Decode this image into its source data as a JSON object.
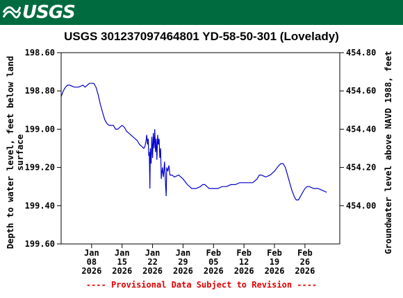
{
  "header": {
    "logo_text": "USGS",
    "logo_icon": "usgs-wave-icon",
    "background_color": "#006b3f"
  },
  "chart_data": {
    "type": "line",
    "title": "USGS 301237097464801 YD-58-50-301 (Lovelady)",
    "ylabel_left": [
      "Depth to water level, feet below land",
      "surface"
    ],
    "ylabel_right": "Groundwater level above NAVD 1988, feet",
    "left_axis": {
      "min": 198.6,
      "max": 199.6,
      "inverted": true,
      "ticks": [
        "198.60",
        "198.80",
        "199.00",
        "199.20",
        "199.40",
        "199.60"
      ]
    },
    "right_axis": {
      "min": 453.8,
      "max": 454.8,
      "ticks": [
        "454.00",
        "454.20",
        "454.40",
        "454.60",
        "454.80"
      ]
    },
    "x_range": [
      "2026-01-01",
      "2026-03-06"
    ],
    "x_ticks": [
      {
        "date": "2026-01-08",
        "label": [
          "Jan",
          "08",
          "2026"
        ]
      },
      {
        "date": "2026-01-15",
        "label": [
          "Jan",
          "15",
          "2026"
        ]
      },
      {
        "date": "2026-01-22",
        "label": [
          "Jan",
          "22",
          "2026"
        ]
      },
      {
        "date": "2026-01-29",
        "label": [
          "Jan",
          "29",
          "2026"
        ]
      },
      {
        "date": "2026-02-05",
        "label": [
          "Feb",
          "05",
          "2026"
        ]
      },
      {
        "date": "2026-02-12",
        "label": [
          "Feb",
          "12",
          "2026"
        ]
      },
      {
        "date": "2026-02-19",
        "label": [
          "Feb",
          "19",
          "2026"
        ]
      },
      {
        "date": "2026-02-26",
        "label": [
          "Feb",
          "26",
          "2026"
        ]
      }
    ],
    "grid": false,
    "line_color": "#0000cc",
    "series": [
      {
        "points": [
          [
            "2026-01-01 00:00",
            198.83
          ],
          [
            "2026-01-01 12:00",
            198.8
          ],
          [
            "2026-01-02 00:00",
            198.78
          ],
          [
            "2026-01-02 12:00",
            198.77
          ],
          [
            "2026-01-03 00:00",
            198.77
          ],
          [
            "2026-01-04 00:00",
            198.78
          ],
          [
            "2026-01-05 00:00",
            198.78
          ],
          [
            "2026-01-06 00:00",
            198.77
          ],
          [
            "2026-01-06 12:00",
            198.78
          ],
          [
            "2026-01-07 00:00",
            198.77
          ],
          [
            "2026-01-07 12:00",
            198.76
          ],
          [
            "2026-01-08 00:00",
            198.76
          ],
          [
            "2026-01-08 12:00",
            198.76
          ],
          [
            "2026-01-09 00:00",
            198.78
          ],
          [
            "2026-01-09 12:00",
            198.82
          ],
          [
            "2026-01-10 00:00",
            198.87
          ],
          [
            "2026-01-10 12:00",
            198.91
          ],
          [
            "2026-01-11 00:00",
            198.95
          ],
          [
            "2026-01-11 12:00",
            198.97
          ],
          [
            "2026-01-12 00:00",
            198.98
          ],
          [
            "2026-01-12 12:00",
            198.98
          ],
          [
            "2026-01-13 00:00",
            198.98
          ],
          [
            "2026-01-13 12:00",
            199.0
          ],
          [
            "2026-01-14 00:00",
            199.0
          ],
          [
            "2026-01-14 12:00",
            198.99
          ],
          [
            "2026-01-15 00:00",
            198.98
          ],
          [
            "2026-01-15 12:00",
            198.99
          ],
          [
            "2026-01-16 00:00",
            199.01
          ],
          [
            "2026-01-16 12:00",
            199.02
          ],
          [
            "2026-01-17 00:00",
            199.03
          ],
          [
            "2026-01-18 00:00",
            199.05
          ],
          [
            "2026-01-18 12:00",
            199.06
          ],
          [
            "2026-01-19 00:00",
            199.08
          ],
          [
            "2026-01-19 12:00",
            199.09
          ],
          [
            "2026-01-20 00:00",
            199.1
          ],
          [
            "2026-01-20 06:00",
            199.09
          ],
          [
            "2026-01-20 12:00",
            199.06
          ],
          [
            "2026-01-20 16:00",
            199.03
          ],
          [
            "2026-01-20 20:00",
            199.08
          ],
          [
            "2026-01-21 00:00",
            199.05
          ],
          [
            "2026-01-21 03:00",
            199.14
          ],
          [
            "2026-01-21 06:00",
            199.12
          ],
          [
            "2026-01-21 09:00",
            199.31
          ],
          [
            "2026-01-21 12:00",
            199.1
          ],
          [
            "2026-01-21 16:00",
            199.18
          ],
          [
            "2026-01-21 20:00",
            199.04
          ],
          [
            "2026-01-22 00:00",
            199.15
          ],
          [
            "2026-01-22 04:00",
            199.02
          ],
          [
            "2026-01-22 08:00",
            199.1
          ],
          [
            "2026-01-22 12:00",
            199.0
          ],
          [
            "2026-01-22 16:00",
            199.12
          ],
          [
            "2026-01-22 20:00",
            199.05
          ],
          [
            "2026-01-23 00:00",
            199.16
          ],
          [
            "2026-01-23 04:00",
            199.03
          ],
          [
            "2026-01-23 08:00",
            199.08
          ],
          [
            "2026-01-23 12:00",
            199.05
          ],
          [
            "2026-01-23 16:00",
            199.15
          ],
          [
            "2026-01-23 20:00",
            199.1
          ],
          [
            "2026-01-24 00:00",
            199.26
          ],
          [
            "2026-01-24 06:00",
            199.2
          ],
          [
            "2026-01-24 12:00",
            199.25
          ],
          [
            "2026-01-24 18:00",
            199.17
          ],
          [
            "2026-01-25 00:00",
            199.3
          ],
          [
            "2026-01-25 03:00",
            199.35
          ],
          [
            "2026-01-25 06:00",
            199.2
          ],
          [
            "2026-01-25 12:00",
            199.22
          ],
          [
            "2026-01-25 18:00",
            199.19
          ],
          [
            "2026-01-26 00:00",
            199.24
          ],
          [
            "2026-01-26 12:00",
            199.24
          ],
          [
            "2026-01-27 00:00",
            199.25
          ],
          [
            "2026-01-28 00:00",
            199.24
          ],
          [
            "2026-01-29 00:00",
            199.26
          ],
          [
            "2026-01-30 00:00",
            199.29
          ],
          [
            "2026-01-31 00:00",
            199.31
          ],
          [
            "2026-02-01 00:00",
            199.31
          ],
          [
            "2026-02-02 00:00",
            199.3
          ],
          [
            "2026-02-02 12:00",
            199.29
          ],
          [
            "2026-02-03 00:00",
            199.29
          ],
          [
            "2026-02-03 12:00",
            199.3
          ],
          [
            "2026-02-04 00:00",
            199.31
          ],
          [
            "2026-02-05 00:00",
            199.31
          ],
          [
            "2026-02-06 00:00",
            199.31
          ],
          [
            "2026-02-07 00:00",
            199.3
          ],
          [
            "2026-02-08 00:00",
            199.3
          ],
          [
            "2026-02-09 00:00",
            199.29
          ],
          [
            "2026-02-10 00:00",
            199.29
          ],
          [
            "2026-02-11 00:00",
            199.28
          ],
          [
            "2026-02-12 00:00",
            199.28
          ],
          [
            "2026-02-13 00:00",
            199.28
          ],
          [
            "2026-02-14 00:00",
            199.28
          ],
          [
            "2026-02-15 00:00",
            199.26
          ],
          [
            "2026-02-15 12:00",
            199.24
          ],
          [
            "2026-02-16 00:00",
            199.24
          ],
          [
            "2026-02-17 00:00",
            199.25
          ],
          [
            "2026-02-18 00:00",
            199.24
          ],
          [
            "2026-02-19 00:00",
            199.22
          ],
          [
            "2026-02-20 00:00",
            199.19
          ],
          [
            "2026-02-20 12:00",
            199.18
          ],
          [
            "2026-02-21 00:00",
            199.18
          ],
          [
            "2026-02-21 12:00",
            199.2
          ],
          [
            "2026-02-22 00:00",
            199.24
          ],
          [
            "2026-02-22 12:00",
            199.28
          ],
          [
            "2026-02-23 00:00",
            199.32
          ],
          [
            "2026-02-23 12:00",
            199.35
          ],
          [
            "2026-02-24 00:00",
            199.37
          ],
          [
            "2026-02-24 12:00",
            199.37
          ],
          [
            "2026-02-25 00:00",
            199.35
          ],
          [
            "2026-02-25 12:00",
            199.33
          ],
          [
            "2026-02-26 00:00",
            199.31
          ],
          [
            "2026-02-26 12:00",
            199.3
          ],
          [
            "2026-02-27 00:00",
            199.3
          ],
          [
            "2026-02-28 00:00",
            199.31
          ],
          [
            "2026-03-01 00:00",
            199.31
          ],
          [
            "2026-03-02 00:00",
            199.32
          ],
          [
            "2026-03-03 00:00",
            199.33
          ]
        ]
      }
    ]
  },
  "footer": {
    "text": "---- Provisional Data Subject to Revision ----",
    "color": "#e00000"
  }
}
